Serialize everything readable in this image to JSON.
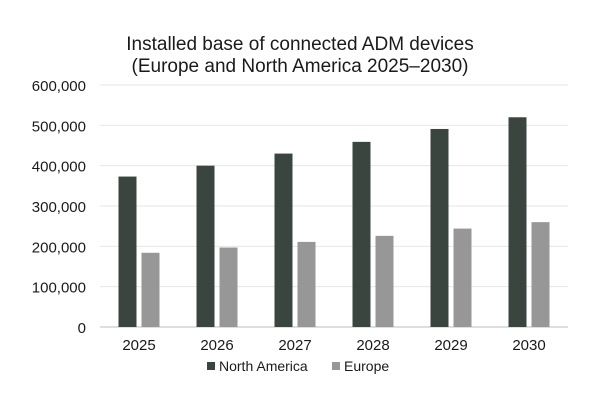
{
  "chart_data": {
    "type": "bar",
    "title": [
      "Installed base of connected ADM devices",
      "(Europe and North America 2025–2030)"
    ],
    "xlabel": "",
    "ylabel": "",
    "categories": [
      "2025",
      "2026",
      "2027",
      "2028",
      "2029",
      "2030"
    ],
    "series": [
      {
        "name": "North America",
        "color": "#3b4540",
        "values": [
          373000,
          400000,
          430000,
          459000,
          491000,
          520000
        ]
      },
      {
        "name": "Europe",
        "color": "#979797",
        "values": [
          184000,
          197000,
          211000,
          226000,
          244000,
          260000
        ]
      }
    ],
    "ylim": [
      0,
      600000
    ],
    "yticks": [
      0,
      100000,
      200000,
      300000,
      400000,
      500000,
      600000
    ],
    "ytick_labels": [
      "0",
      "100,000",
      "200,000",
      "300,000",
      "400,000",
      "500,000",
      "600,000"
    ],
    "grid": true,
    "legend_position": "bottom"
  }
}
